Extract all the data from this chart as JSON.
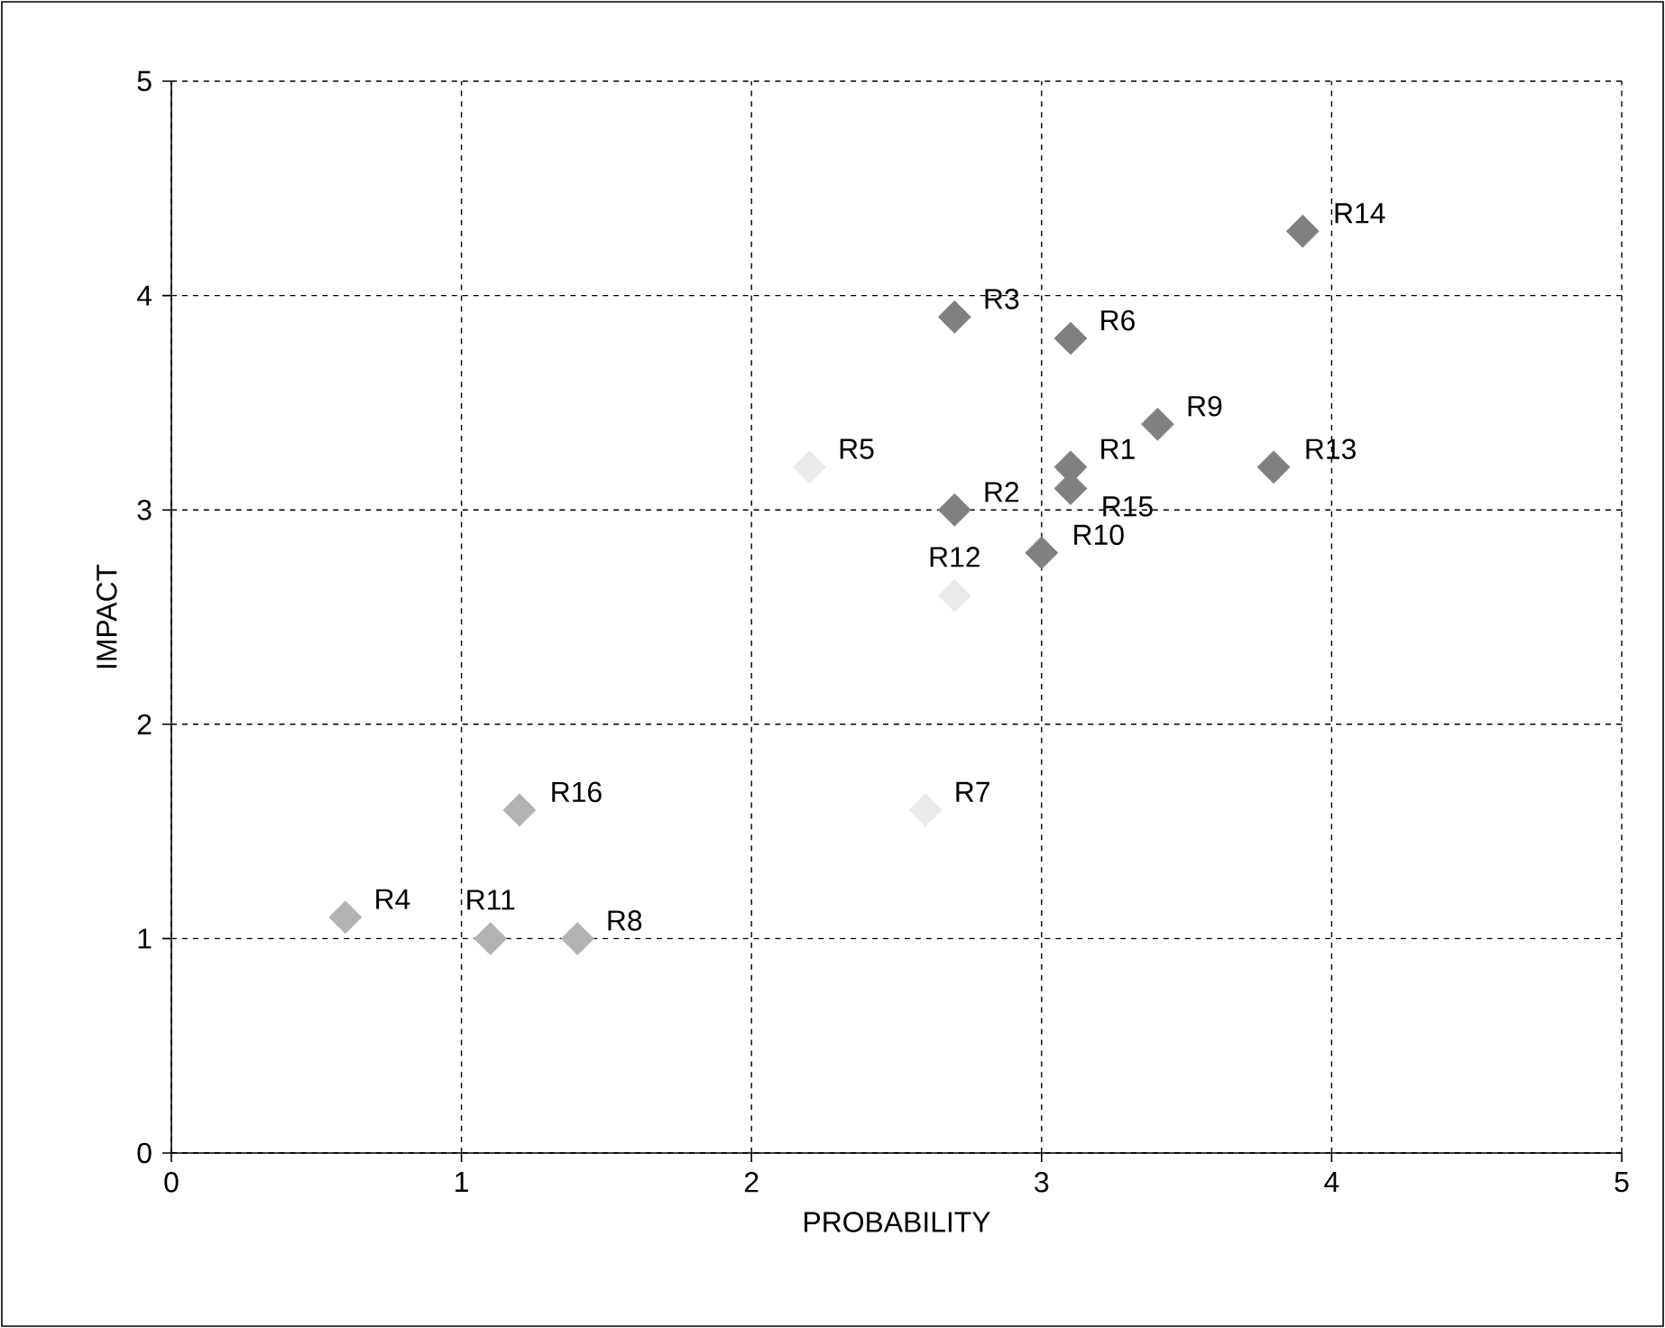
{
  "chart_data": {
    "type": "scatter",
    "xlabel": "PROBABILITY",
    "ylabel": "IMPACT",
    "xlim": [
      0,
      5
    ],
    "ylim": [
      0,
      5
    ],
    "xticks": [
      0,
      1,
      2,
      3,
      4,
      5
    ],
    "yticks": [
      0,
      1,
      2,
      3,
      4,
      5
    ],
    "grid": true,
    "marker": "diamond",
    "series": [
      {
        "color": "#808080",
        "x": [
          3.1,
          2.7,
          2.7,
          3.1,
          3.4,
          3.0,
          3.8,
          3.9,
          3.1
        ],
        "values": [
          3.2,
          3.0,
          3.9,
          3.8,
          3.4,
          2.8,
          3.2,
          4.3,
          3.1
        ]
      },
      {
        "color": "#eaeaea",
        "x": [
          2.2,
          2.6,
          2.7
        ],
        "values": [
          3.2,
          1.6,
          2.6
        ]
      },
      {
        "color": "#b2b2b2",
        "x": [
          0.6,
          1.4,
          1.1,
          1.2
        ],
        "values": [
          1.1,
          1.0,
          1.0,
          1.6
        ]
      }
    ],
    "annotations": [
      {
        "text": "R1",
        "x": 3.1,
        "y": 3.2
      },
      {
        "text": "R2",
        "x": 2.7,
        "y": 3.0
      },
      {
        "text": "R3",
        "x": 2.7,
        "y": 3.9
      },
      {
        "text": "R4",
        "x": 0.6,
        "y": 1.1
      },
      {
        "text": "R5",
        "x": 2.2,
        "y": 3.2
      },
      {
        "text": "R6",
        "x": 3.1,
        "y": 3.8
      },
      {
        "text": "R7",
        "x": 2.6,
        "y": 1.6
      },
      {
        "text": "R8",
        "x": 1.4,
        "y": 1.0
      },
      {
        "text": "R9",
        "x": 3.4,
        "y": 3.4
      },
      {
        "text": "R10",
        "x": 3.0,
        "y": 2.8
      },
      {
        "text": "R11",
        "x": 1.1,
        "y": 1.0
      },
      {
        "text": "R12",
        "x": 2.7,
        "y": 2.6
      },
      {
        "text": "R13",
        "x": 3.8,
        "y": 3.2
      },
      {
        "text": "R14",
        "x": 3.9,
        "y": 4.3
      },
      {
        "text": "R15",
        "x": 3.1,
        "y": 3.1
      },
      {
        "text": "R16",
        "x": 1.2,
        "y": 1.6
      }
    ]
  }
}
